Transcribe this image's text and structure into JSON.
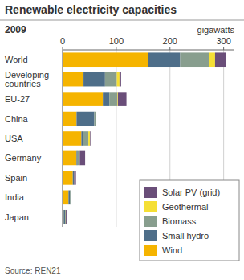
{
  "chart_data": {
    "type": "bar",
    "orientation": "horizontal",
    "stacked": true,
    "title": "Renewable electricity capacities",
    "subtitle": "2009",
    "x_label": "gigawatts",
    "source": "Source: REN21",
    "categories": [
      "World",
      "Developing countries",
      "EU-27",
      "China",
      "USA",
      "Germany",
      "Spain",
      "India",
      "Japan"
    ],
    "series": [
      {
        "name": "Wind",
        "color": "#f5b400",
        "values": [
          159,
          39,
          75,
          26,
          35,
          26,
          19,
          11,
          2
        ]
      },
      {
        "name": "Small hydro",
        "color": "#4e6e89",
        "values": [
          60,
          40,
          12,
          33,
          3,
          2,
          2,
          3,
          3.5
        ]
      },
      {
        "name": "Biomass",
        "color": "#889e8e",
        "values": [
          54,
          22,
          15,
          3,
          10,
          4,
          0.5,
          2,
          0.1
        ]
      },
      {
        "name": "Geothermal",
        "color": "#f5df35",
        "values": [
          11,
          5,
          1,
          0,
          3,
          0,
          0,
          0,
          0.5
        ]
      },
      {
        "name": "Solar PV (grid)",
        "color": "#6a4e79",
        "values": [
          21,
          3,
          16,
          0.4,
          1,
          10,
          3.4,
          0.1,
          2.6
        ]
      }
    ],
    "xlim": [
      0,
      320
    ],
    "xticks": [
      0,
      100,
      200,
      300
    ],
    "grid": true,
    "legend": "bottom-right"
  }
}
